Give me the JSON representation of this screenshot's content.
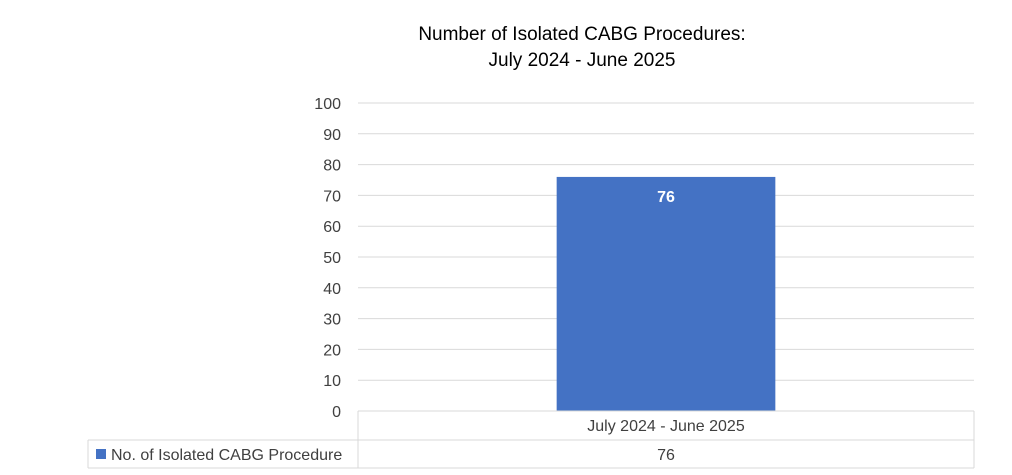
{
  "chart_data": {
    "type": "bar",
    "title_lines": [
      "Number of Isolated CABG Procedures:",
      "July 2024 - June 2025"
    ],
    "categories": [
      "July 2024 - June 2025"
    ],
    "series": [
      {
        "name": "No. of Isolated CABG Procedure",
        "values": [
          76
        ],
        "color": "#4472C4"
      }
    ],
    "ylim": [
      0,
      100
    ],
    "yticks": [
      0,
      10,
      20,
      30,
      40,
      50,
      60,
      70,
      80,
      90,
      100
    ],
    "grid": true,
    "data_labels": true,
    "data_table": true,
    "legend_placement": "data-table"
  }
}
